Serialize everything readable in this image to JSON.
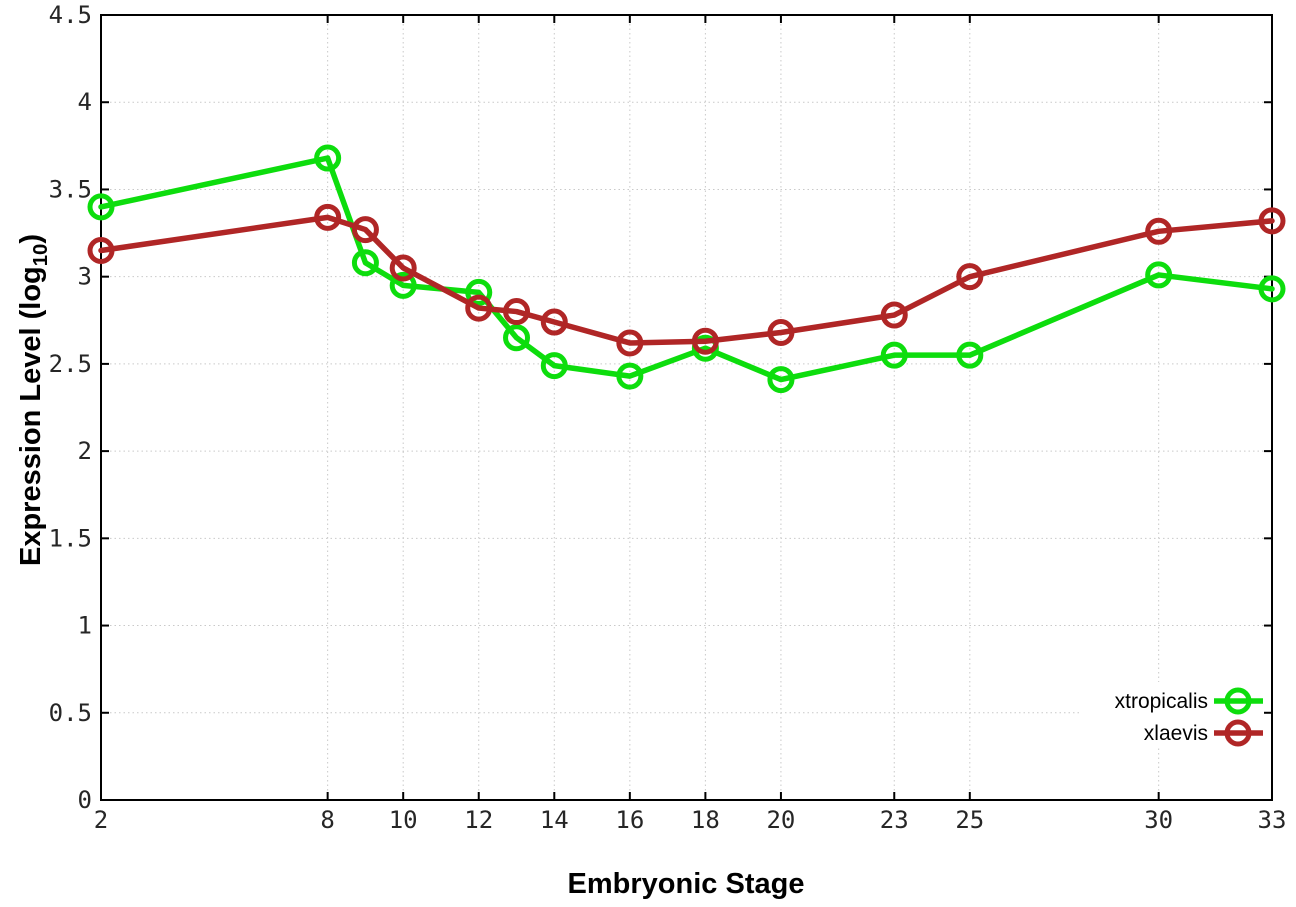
{
  "chart_data": {
    "type": "line",
    "title": "",
    "xlabel": "Embryonic Stage",
    "ylabel": "Expression Level (log10)",
    "ylabel_parts": {
      "prefix": "Expression Level (log",
      "sub": "10",
      "suffix": ")"
    },
    "x": [
      2,
      8,
      9,
      10,
      12,
      13,
      14,
      16,
      18,
      20,
      23,
      25,
      30,
      33
    ],
    "series": [
      {
        "name": "xtropicalis",
        "color": "#0ddd0d",
        "values": [
          3.4,
          3.68,
          3.08,
          2.95,
          2.91,
          2.65,
          2.49,
          2.43,
          2.59,
          2.41,
          2.55,
          2.55,
          3.01,
          2.93
        ]
      },
      {
        "name": "xlaevis",
        "color": "#b02626",
        "values": [
          3.15,
          3.34,
          3.27,
          3.05,
          2.82,
          2.8,
          2.74,
          2.62,
          2.63,
          2.68,
          2.78,
          3.0,
          3.26,
          3.32
        ]
      }
    ],
    "xticks": [
      2,
      8,
      10,
      12,
      14,
      16,
      18,
      20,
      23,
      25,
      30,
      33
    ],
    "yticks": [
      0,
      0.5,
      1,
      1.5,
      2,
      2.5,
      3,
      3.5,
      4,
      4.5
    ],
    "xlim": [
      2,
      33
    ],
    "ylim": [
      0,
      4.5
    ],
    "grid": "dotted",
    "legend_position": "bottom-right",
    "marker": "open-circle",
    "background_color": "#ffffff",
    "border_color": "#000000"
  }
}
